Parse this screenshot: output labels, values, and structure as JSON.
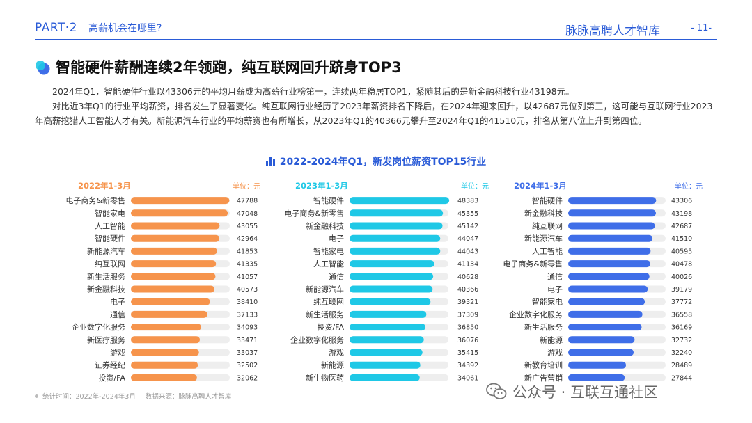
{
  "header": {
    "part": "PART·2",
    "title": "高薪机会在哪里?",
    "brand": "脉脉高聘人才智库",
    "page_number": "- 11-"
  },
  "headline": "智能硬件薪酬连续2年领跑，纯互联网回升跻身TOP3",
  "paragraphs": [
    "2024年Q1，智能硬件行业以43306元的平均月薪成为高薪行业榜第一，连续两年稳居TOP1，紧随其后的是新金融科技行业43198元。",
    "对比近3年Q1的行业平均薪资，排名发生了显著变化。纯互联网行业经历了2023年薪资排名下降后，在2024年迎来回升，以42687元位列第三，这可能与互联网行业2023年高薪挖猎人工智能人才有关。新能源汽车行业的平均薪资也有所增长，从2023年Q1的40366元攀升至2024年Q1的41510元，排名从第八位上升到第四位。"
  ],
  "chart_title": "2022-2024年Q1，新发岗位薪资TOP15行业",
  "chart_data": [
    {
      "type": "bar",
      "orientation": "horizontal",
      "title": "2022年1-3月",
      "unit_label": "单位：元",
      "color": "#F6944C",
      "xlim": [
        0,
        48000
      ],
      "categories": [
        "电子商务&新零售",
        "智能家电",
        "人工智能",
        "智能硬件",
        "新能源汽车",
        "纯互联网",
        "新生活服务",
        "新金融科技",
        "电子",
        "通信",
        "企业数字化服务",
        "新医疗服务",
        "游戏",
        "证券经纪",
        "投资/FA"
      ],
      "values": [
        47788,
        47048,
        43055,
        42964,
        41853,
        41335,
        41057,
        40573,
        38410,
        37133,
        34093,
        33471,
        33037,
        32502,
        32062
      ]
    },
    {
      "type": "bar",
      "orientation": "horizontal",
      "title": "2023年1-3月",
      "unit_label": "单位：元",
      "color": "#1FC8E6",
      "xlim": [
        0,
        48000
      ],
      "categories": [
        "智能硬件",
        "电子商务&新零售",
        "新金融科技",
        "电子",
        "智能家电",
        "人工智能",
        "通信",
        "新能源汽车",
        "纯互联网",
        "新生活服务",
        "投资/FA",
        "企业数字化服务",
        "游戏",
        "新能源",
        "新生物医药"
      ],
      "values": [
        48383,
        45355,
        45142,
        44047,
        44043,
        41134,
        40628,
        40366,
        39321,
        37309,
        36850,
        36076,
        35415,
        34392,
        34061
      ]
    },
    {
      "type": "bar",
      "orientation": "horizontal",
      "title": "2024年1-3月",
      "unit_label": "单位：元",
      "color": "#3F6EE8",
      "xlim": [
        0,
        48000
      ],
      "categories": [
        "智能硬件",
        "新金融科技",
        "纯互联网",
        "新能源汽车",
        "人工智能",
        "电子商务&新零售",
        "通信",
        "电子",
        "智能家电",
        "企业数字化服务",
        "新生活服务",
        "新能源",
        "游戏",
        "新教育培训",
        "新广告营销"
      ],
      "values": [
        43306,
        43198,
        42687,
        41510,
        40595,
        40478,
        40026,
        39179,
        37772,
        36558,
        36169,
        32732,
        32240,
        28489,
        27844
      ]
    }
  ],
  "footnote": {
    "time": "统计时间：2022年-2024年3月",
    "source": "数据来源：脉脉高聘人才智库"
  },
  "watermark": "公众号 · 互联互通社区",
  "colors": {
    "accent": "#2A5BD7",
    "track": "#EEEEEE"
  }
}
